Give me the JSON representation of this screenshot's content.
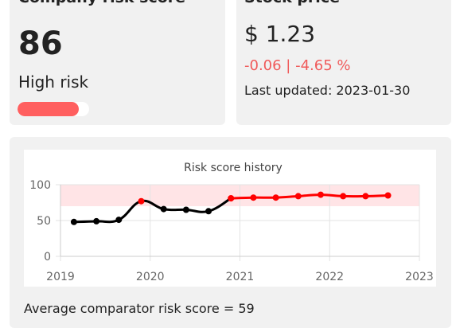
{
  "score_card": {
    "title": "Company risk score",
    "score": 86,
    "level": "High risk"
  },
  "stock_card": {
    "title": "Stock price",
    "price": "$ 1.23",
    "change": "-0.06 | -4.65 %",
    "updated": "Last updated: 2023-01-30"
  },
  "chart_data": {
    "type": "line",
    "title": "Risk score history",
    "x": [
      2019.15,
      2019.4,
      2019.65,
      2019.9,
      2020.15,
      2020.4,
      2020.65,
      2020.9,
      2021.15,
      2021.4,
      2021.65,
      2021.9,
      2022.15,
      2022.4,
      2022.65
    ],
    "series": [
      {
        "color": "#000000",
        "marker_colors": [
          "#000000",
          "#000000",
          "#000000",
          "#ff0000",
          "#000000",
          "#000000",
          "#000000",
          "#ff0000",
          null,
          null,
          null,
          null,
          null,
          null,
          null
        ],
        "values": [
          48,
          49,
          51,
          77,
          66,
          65,
          63,
          81,
          null,
          null,
          null,
          null,
          null,
          null,
          null
        ]
      },
      {
        "color": "#ff0000",
        "values": [
          null,
          null,
          null,
          null,
          null,
          null,
          null,
          81,
          82,
          82,
          84,
          86,
          84,
          84,
          85
        ]
      }
    ],
    "band": [
      70,
      100
    ],
    "band_color": "#ffe4e6",
    "xlim": [
      2019,
      2023
    ],
    "xticks": [
      2019,
      2020,
      2021,
      2022,
      2023
    ],
    "ylim": [
      0,
      100
    ],
    "yticks": [
      0,
      50,
      100
    ],
    "grid": true
  },
  "comparator_text": "Average comparator risk score = 59"
}
